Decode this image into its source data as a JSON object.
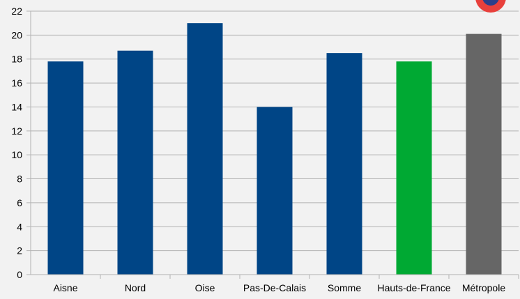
{
  "chart_data": {
    "type": "bar",
    "categories": [
      "Aisne",
      "Nord",
      "Oise",
      "Pas-De-Calais",
      "Somme",
      "Hauts-de-France",
      "Métropole"
    ],
    "values": [
      17.8,
      18.7,
      21.0,
      14.0,
      18.5,
      17.8,
      20.1
    ],
    "bar_colors": [
      "#004586",
      "#004586",
      "#004586",
      "#004586",
      "#004586",
      "#00a933",
      "#666666"
    ],
    "ylim": [
      0,
      22
    ],
    "y_ticks": [
      "0",
      "2",
      "4",
      "6",
      "8",
      "10",
      "12",
      "14",
      "16",
      "18",
      "20",
      "22"
    ],
    "grid": true,
    "title": "",
    "xlabel": "",
    "ylabel": ""
  },
  "badge": {
    "icon": "badge-icon",
    "colors": [
      "#e8403c",
      "#2b3f8a"
    ]
  }
}
